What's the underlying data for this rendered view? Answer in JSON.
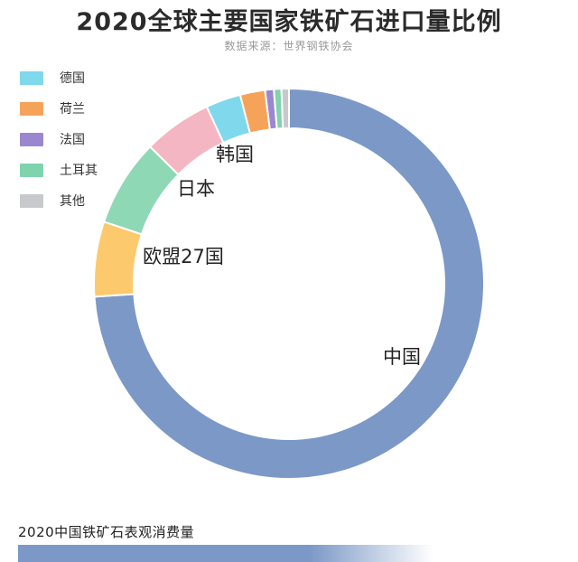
{
  "title": "2020全球主要国家铁矿石进口量比例",
  "subtitle": "数据来源：世界钢铁协会",
  "legend": [
    {
      "label": "德国",
      "color": "#7fd8ec"
    },
    {
      "label": "荷兰",
      "color": "#f6a35a"
    },
    {
      "label": "法国",
      "color": "#9b87d0"
    },
    {
      "label": "土耳其",
      "color": "#7fd3ae"
    },
    {
      "label": "其他",
      "color": "#c7c9cc"
    }
  ],
  "chart_data": {
    "type": "pie",
    "style": "donut",
    "slices": [
      {
        "label": "中国",
        "value": 71.5,
        "color": "#7b98c7"
      },
      {
        "label": "欧盟27国",
        "value": 6.0,
        "color": "#fcc96c"
      },
      {
        "label": "日本",
        "value": 7.0,
        "color": "#8fd8b6"
      },
      {
        "label": "韩国",
        "value": 5.5,
        "color": "#f4b6c2"
      },
      {
        "label": "德国",
        "value": 2.8,
        "color": "#7fd8ec"
      },
      {
        "label": "荷兰",
        "value": 2.0,
        "color": "#f6a35a"
      },
      {
        "label": "法国",
        "value": 0.7,
        "color": "#9b87d0"
      },
      {
        "label": "土耳其",
        "value": 0.6,
        "color": "#7fd3ae"
      },
      {
        "label": "其他",
        "value": 0.6,
        "color": "#c7c9cc"
      }
    ],
    "start": "top, clockwise"
  },
  "footer": {
    "title": "2020中国铁矿石表观消费量"
  }
}
